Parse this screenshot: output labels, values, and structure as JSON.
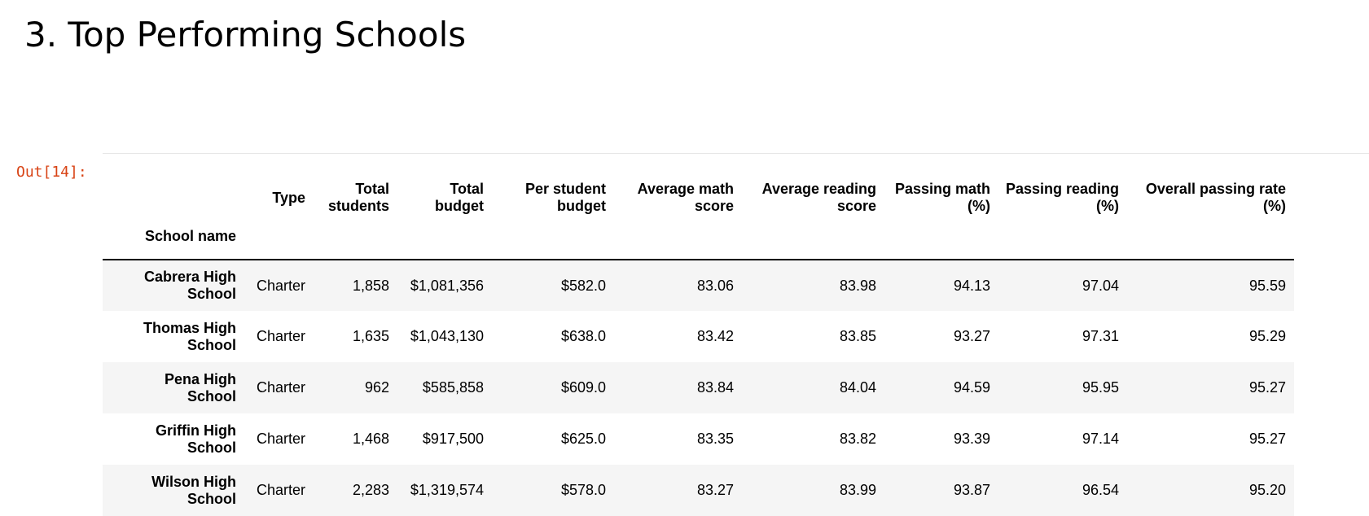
{
  "slide": {
    "title": "3. Top Performing Schools"
  },
  "cell": {
    "prompt": "Out[14]:"
  },
  "table": {
    "columns": [
      {
        "line1": "Type",
        "line2": ""
      },
      {
        "line1": "Total",
        "line2": "students"
      },
      {
        "line1": "Total",
        "line2": "budget"
      },
      {
        "line1": "Per student",
        "line2": "budget"
      },
      {
        "line1": "Average math",
        "line2": "score"
      },
      {
        "line1": "Average reading",
        "line2": "score"
      },
      {
        "line1": "Passing math",
        "line2": "(%)"
      },
      {
        "line1": "Passing reading",
        "line2": "(%)"
      },
      {
        "line1": "Overall passing rate",
        "line2": "(%)"
      }
    ],
    "index_name": "School name",
    "rows": [
      {
        "name_line1": "Cabrera High",
        "name_line2": "School",
        "cells": [
          "Charter",
          "1,858",
          "$1,081,356",
          "$582.0",
          "83.06",
          "83.98",
          "94.13",
          "97.04",
          "95.59"
        ]
      },
      {
        "name_line1": "Thomas High",
        "name_line2": "School",
        "cells": [
          "Charter",
          "1,635",
          "$1,043,130",
          "$638.0",
          "83.42",
          "83.85",
          "93.27",
          "97.31",
          "95.29"
        ]
      },
      {
        "name_line1": "Pena High",
        "name_line2": "School",
        "cells": [
          "Charter",
          "962",
          "$585,858",
          "$609.0",
          "83.84",
          "84.04",
          "94.59",
          "95.95",
          "95.27"
        ]
      },
      {
        "name_line1": "Griffin High",
        "name_line2": "School",
        "cells": [
          "Charter",
          "1,468",
          "$917,500",
          "$625.0",
          "83.35",
          "83.82",
          "93.39",
          "97.14",
          "95.27"
        ]
      },
      {
        "name_line1": "Wilson High",
        "name_line2": "School",
        "cells": [
          "Charter",
          "2,283",
          "$1,319,574",
          "$578.0",
          "83.27",
          "83.99",
          "93.87",
          "96.54",
          "95.20"
        ]
      }
    ]
  }
}
